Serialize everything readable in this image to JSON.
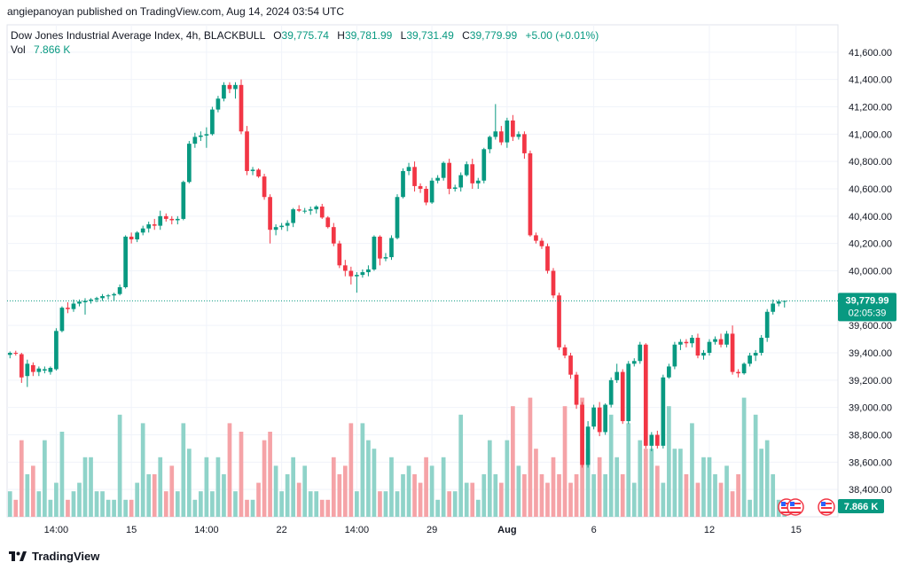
{
  "header": {
    "published": "angiepanoyan published on TradingView.com, Aug 14, 2024 03:54 UTC"
  },
  "legend": {
    "symbol": "Dow Jones Industrial Average Index, 4h, BLACKBULL",
    "o_label": "O",
    "o_value": "39,775.74",
    "h_label": "H",
    "h_value": "39,781.99",
    "l_label": "L",
    "l_value": "39,731.49",
    "c_label": "C",
    "c_value": "39,779.99",
    "change": "+5.00 (+0.01%)",
    "vol_label": "Vol",
    "vol_value": "7.866 K"
  },
  "price_badge": {
    "price": "39,779.99",
    "timer": "02:05:39"
  },
  "vol_badge": "7.866 K",
  "footer": {
    "brand": "TradingView"
  },
  "colors": {
    "up": "#089981",
    "down": "#f23645",
    "vol_up": "#8fd3c9",
    "vol_down": "#f5a3a7",
    "grid": "#f0f3fa"
  },
  "chart_data": {
    "type": "candlestick",
    "ylim": [
      38200,
      41800
    ],
    "y_ticks": [
      41600,
      41400,
      41200,
      41000,
      40800,
      40600,
      40400,
      40200,
      40000,
      39600,
      39400,
      39200,
      39000,
      38800,
      38600,
      38400
    ],
    "y_tick_labels": [
      "41,600.00",
      "41,400.00",
      "41,200.00",
      "41,000.00",
      "40,800.00",
      "40,600.00",
      "40,400.00",
      "40,200.00",
      "40,000.00",
      "39,600.00",
      "39,400.00",
      "39,200.00",
      "39,000.00",
      "38,800.00",
      "38,600.00",
      "38,400.00"
    ],
    "x_tick_labels": [
      "14:00",
      "15",
      "14:00",
      "22",
      "14:00",
      "29",
      "Aug",
      "6",
      "12",
      "15"
    ],
    "x_tick_bar_index": [
      8,
      21,
      34,
      47,
      60,
      73,
      86,
      101,
      121,
      136
    ],
    "last_price": 39779.99,
    "candles": [
      [
        39385,
        39410,
        39360,
        39400,
        3
      ],
      [
        39400,
        39415,
        39380,
        39395,
        2
      ],
      [
        39390,
        39400,
        39180,
        39220,
        9
      ],
      [
        39230,
        39350,
        39150,
        39320,
        5
      ],
      [
        39310,
        39330,
        39230,
        39260,
        6
      ],
      [
        39260,
        39300,
        39230,
        39285,
        3
      ],
      [
        39270,
        39300,
        39250,
        39280,
        9
      ],
      [
        39260,
        39300,
        39240,
        39290,
        2
      ],
      [
        39280,
        39580,
        39270,
        39560,
        4
      ],
      [
        39560,
        39740,
        39550,
        39730,
        10
      ],
      [
        39730,
        39770,
        39690,
        39720,
        2
      ],
      [
        39720,
        39790,
        39700,
        39760,
        3
      ],
      [
        39760,
        39790,
        39740,
        39775,
        4
      ],
      [
        39770,
        39800,
        39680,
        39780,
        7
      ],
      [
        39780,
        39800,
        39760,
        39790,
        7
      ],
      [
        39790,
        39810,
        39770,
        39800,
        3
      ],
      [
        39800,
        39830,
        39780,
        39815,
        3
      ],
      [
        39815,
        39830,
        39790,
        39820,
        2
      ],
      [
        39820,
        39840,
        39780,
        39830,
        2
      ],
      [
        39830,
        39900,
        39820,
        39880,
        12
      ],
      [
        39880,
        40260,
        39870,
        40250,
        2
      ],
      [
        40250,
        40280,
        40200,
        40230,
        2
      ],
      [
        40230,
        40290,
        40210,
        40280,
        4
      ],
      [
        40280,
        40330,
        40260,
        40310,
        11
      ],
      [
        40310,
        40360,
        40280,
        40340,
        5
      ],
      [
        40340,
        40380,
        40300,
        40330,
        5
      ],
      [
        40330,
        40440,
        40300,
        40400,
        7
      ],
      [
        40400,
        40420,
        40360,
        40380,
        3
      ],
      [
        40380,
        40400,
        40340,
        40370,
        6
      ],
      [
        40370,
        40400,
        40340,
        40380,
        3
      ],
      [
        40380,
        40660,
        40370,
        40650,
        11
      ],
      [
        40650,
        40950,
        40640,
        40930,
        8
      ],
      [
        40930,
        41010,
        40900,
        40980,
        2
      ],
      [
        40980,
        41020,
        40950,
        40990,
        3
      ],
      [
        40990,
        41050,
        40900,
        41000,
        7
      ],
      [
        41000,
        41200,
        40990,
        41180,
        3
      ],
      [
        41180,
        41280,
        41160,
        41260,
        7
      ],
      [
        41260,
        41380,
        41240,
        41360,
        5
      ],
      [
        41360,
        41380,
        41300,
        41330,
        11
      ],
      [
        41330,
        41380,
        41260,
        41360,
        3
      ],
      [
        41360,
        41400,
        41000,
        41020,
        10
      ],
      [
        41020,
        41060,
        40700,
        40730,
        2
      ],
      [
        40730,
        40760,
        40700,
        40740,
        2
      ],
      [
        40740,
        40750,
        40680,
        40690,
        4
      ],
      [
        40690,
        40710,
        40520,
        40540,
        9
      ],
      [
        40540,
        40560,
        40200,
        40300,
        10
      ],
      [
        40300,
        40340,
        40260,
        40320,
        6
      ],
      [
        40320,
        40350,
        40300,
        40330,
        3
      ],
      [
        40330,
        40370,
        40290,
        40350,
        5
      ],
      [
        40350,
        40460,
        40320,
        40450,
        7
      ],
      [
        40450,
        40480,
        40430,
        40440,
        4
      ],
      [
        40440,
        40460,
        40420,
        40440,
        6
      ],
      [
        40440,
        40470,
        40410,
        40450,
        3
      ],
      [
        40450,
        40480,
        40420,
        40470,
        3
      ],
      [
        40470,
        40490,
        40380,
        40390,
        2
      ],
      [
        40390,
        40400,
        40310,
        40320,
        2
      ],
      [
        40320,
        40350,
        40180,
        40200,
        7
      ],
      [
        40200,
        40220,
        40020,
        40040,
        5
      ],
      [
        40040,
        40080,
        39960,
        40000,
        6
      ],
      [
        40000,
        40030,
        39900,
        39960,
        11
      ],
      [
        39960,
        39990,
        39840,
        39970,
        3
      ],
      [
        39970,
        40010,
        39950,
        39990,
        11
      ],
      [
        39990,
        40040,
        39960,
        40010,
        9
      ],
      [
        40010,
        40260,
        40000,
        40250,
        8
      ],
      [
        40250,
        40260,
        40040,
        40090,
        3
      ],
      [
        40090,
        40130,
        40070,
        40100,
        3
      ],
      [
        40100,
        40260,
        40080,
        40240,
        7
      ],
      [
        40240,
        40560,
        40230,
        40540,
        3
      ],
      [
        40540,
        40750,
        40530,
        40730,
        5
      ],
      [
        40730,
        40790,
        40700,
        40760,
        6
      ],
      [
        40760,
        40800,
        40580,
        40620,
        5
      ],
      [
        40620,
        40640,
        40570,
        40600,
        4
      ],
      [
        40600,
        40620,
        40480,
        40500,
        7
      ],
      [
        40500,
        40680,
        40490,
        40660,
        6
      ],
      [
        40660,
        40700,
        40640,
        40680,
        2
      ],
      [
        40680,
        40800,
        40660,
        40790,
        7
      ],
      [
        40790,
        40820,
        40560,
        40600,
        3
      ],
      [
        40600,
        40630,
        40580,
        40610,
        3
      ],
      [
        40610,
        40720,
        40580,
        40700,
        12
      ],
      [
        40700,
        40800,
        40690,
        40780,
        4
      ],
      [
        40780,
        40820,
        40600,
        40640,
        4
      ],
      [
        40640,
        40680,
        40600,
        40660,
        2
      ],
      [
        40660,
        40900,
        40640,
        40890,
        5
      ],
      [
        40890,
        40990,
        40860,
        40980,
        9
      ],
      [
        40980,
        41220,
        40960,
        41020,
        5
      ],
      [
        41020,
        41060,
        40920,
        40940,
        4
      ],
      [
        40940,
        41120,
        40900,
        41100,
        9
      ],
      [
        41100,
        41140,
        40950,
        40980,
        13
      ],
      [
        40980,
        41020,
        40960,
        41000,
        6
      ],
      [
        41000,
        41020,
        40820,
        40860,
        5
      ],
      [
        40860,
        40880,
        40250,
        40260,
        14
      ],
      [
        40260,
        40280,
        40200,
        40220,
        8
      ],
      [
        40220,
        40240,
        40160,
        40180,
        5
      ],
      [
        40180,
        40200,
        39980,
        40000,
        4
      ],
      [
        40000,
        40020,
        39800,
        39820,
        7
      ],
      [
        39820,
        39840,
        39420,
        39440,
        5
      ],
      [
        39440,
        39460,
        39360,
        39380,
        13
      ],
      [
        39380,
        39400,
        39210,
        39240,
        4
      ],
      [
        39240,
        39260,
        38990,
        39020,
        5
      ],
      [
        39020,
        39040,
        38560,
        38580,
        14
      ],
      [
        38580,
        38900,
        38560,
        38860,
        8
      ],
      [
        38860,
        39020,
        38840,
        39000,
        5
      ],
      [
        39000,
        39040,
        38790,
        38820,
        7
      ],
      [
        38820,
        39030,
        38800,
        39020,
        5
      ],
      [
        39020,
        39220,
        39000,
        39200,
        12
      ],
      [
        39200,
        39320,
        39180,
        39260,
        7
      ],
      [
        39260,
        39280,
        38880,
        38900,
        5
      ],
      [
        38900,
        39340,
        38880,
        39320,
        11
      ],
      [
        39320,
        39360,
        39300,
        39340,
        4
      ],
      [
        39340,
        39480,
        39320,
        39460,
        9
      ],
      [
        39460,
        39470,
        38700,
        38720,
        8
      ],
      [
        38720,
        38820,
        38680,
        38800,
        8
      ],
      [
        38800,
        38830,
        38700,
        38720,
        6
      ],
      [
        38720,
        39240,
        38700,
        39220,
        4
      ],
      [
        39220,
        39320,
        39210,
        39300,
        13
      ],
      [
        39300,
        39480,
        39280,
        39460,
        8
      ],
      [
        39460,
        39500,
        39420,
        39480,
        8
      ],
      [
        39480,
        39500,
        39440,
        39470,
        5
      ],
      [
        39470,
        39530,
        39440,
        39510,
        11
      ],
      [
        39510,
        39540,
        39360,
        39380,
        4
      ],
      [
        39380,
        39420,
        39350,
        39400,
        7
      ],
      [
        39400,
        39500,
        39380,
        39480,
        7
      ],
      [
        39480,
        39520,
        39460,
        39500,
        5
      ],
      [
        39500,
        39540,
        39440,
        39460,
        4
      ],
      [
        39460,
        39560,
        39440,
        39540,
        6
      ],
      [
        39540,
        39600,
        39240,
        39260,
        3
      ],
      [
        39260,
        39280,
        39220,
        39250,
        5
      ],
      [
        39250,
        39330,
        39240,
        39320,
        14
      ],
      [
        39320,
        39400,
        39300,
        39380,
        2
      ],
      [
        39380,
        39420,
        39340,
        39400,
        12
      ],
      [
        39400,
        39530,
        39380,
        39510,
        8
      ],
      [
        39510,
        39720,
        39480,
        39700,
        9
      ],
      [
        39700,
        39790,
        39680,
        39760,
        5
      ],
      [
        39760,
        39790,
        39740,
        39776,
        2
      ],
      [
        39775.74,
        39781.99,
        39731.49,
        39779.99,
        2
      ]
    ]
  }
}
